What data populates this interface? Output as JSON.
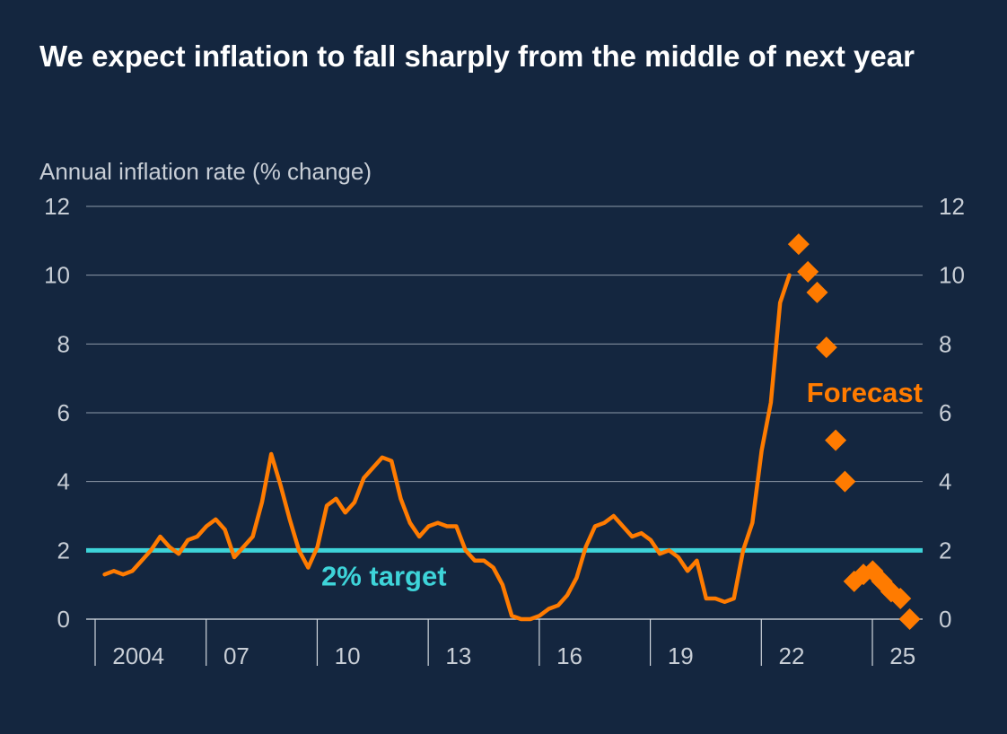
{
  "chart_data": {
    "type": "line",
    "title": "We expect inflation to fall sharply from the middle of next year",
    "ylabel": "Annual inflation rate (% change)",
    "ylim": [
      0,
      12
    ],
    "yticks": [
      "0",
      "2",
      "4",
      "6",
      "8",
      "10",
      "12"
    ],
    "xlim": [
      2003.0,
      2025.6
    ],
    "x_tick_labels": [
      {
        "x": 2004,
        "label": "2004"
      },
      {
        "x": 2007,
        "label": "07"
      },
      {
        "x": 2010,
        "label": "10"
      },
      {
        "x": 2013,
        "label": "13"
      },
      {
        "x": 2016,
        "label": "16"
      },
      {
        "x": 2019,
        "label": "19"
      },
      {
        "x": 2022,
        "label": "22"
      },
      {
        "x": 2025,
        "label": "25"
      }
    ],
    "x_gridlines": [
      2003,
      2006,
      2009,
      2012,
      2015,
      2018,
      2021,
      2024
    ],
    "grid": "horizontal",
    "colors": {
      "background": "#14263f",
      "actual": "#ff7b00",
      "forecast": "#ff7b00",
      "target": "#3ed4d9",
      "gridline": "#8d99a8",
      "axis_text": "#c8ced6",
      "title": "#ffffff"
    },
    "series": [
      {
        "style": "line",
        "points": [
          [
            2003.5,
            1.3
          ],
          [
            2003.75,
            1.4
          ],
          [
            2004.0,
            1.3
          ],
          [
            2004.25,
            1.4
          ],
          [
            2004.5,
            1.7
          ],
          [
            2004.75,
            2.0
          ],
          [
            2005.0,
            2.4
          ],
          [
            2005.25,
            2.1
          ],
          [
            2005.5,
            1.9
          ],
          [
            2005.75,
            2.3
          ],
          [
            2006.0,
            2.4
          ],
          [
            2006.25,
            2.7
          ],
          [
            2006.5,
            2.9
          ],
          [
            2006.75,
            2.6
          ],
          [
            2007.0,
            1.8
          ],
          [
            2007.25,
            2.1
          ],
          [
            2007.5,
            2.4
          ],
          [
            2007.75,
            3.4
          ],
          [
            2008.0,
            4.8
          ],
          [
            2008.25,
            3.9
          ],
          [
            2008.5,
            2.9
          ],
          [
            2008.75,
            2.0
          ],
          [
            2009.0,
            1.5
          ],
          [
            2009.25,
            2.1
          ],
          [
            2009.5,
            3.3
          ],
          [
            2009.75,
            3.5
          ],
          [
            2010.0,
            3.1
          ],
          [
            2010.25,
            3.4
          ],
          [
            2010.5,
            4.1
          ],
          [
            2010.75,
            4.4
          ],
          [
            2011.0,
            4.7
          ],
          [
            2011.25,
            4.6
          ],
          [
            2011.5,
            3.5
          ],
          [
            2011.75,
            2.8
          ],
          [
            2012.0,
            2.4
          ],
          [
            2012.25,
            2.7
          ],
          [
            2012.5,
            2.8
          ],
          [
            2012.75,
            2.7
          ],
          [
            2013.0,
            2.7
          ],
          [
            2013.25,
            2.0
          ],
          [
            2013.5,
            1.7
          ],
          [
            2013.75,
            1.7
          ],
          [
            2014.0,
            1.5
          ],
          [
            2014.25,
            1.0
          ],
          [
            2014.5,
            0.1
          ],
          [
            2014.75,
            0.0
          ],
          [
            2015.0,
            0.0
          ],
          [
            2015.25,
            0.1
          ],
          [
            2015.5,
            0.3
          ],
          [
            2015.75,
            0.4
          ],
          [
            2016.0,
            0.7
          ],
          [
            2016.25,
            1.2
          ],
          [
            2016.5,
            2.1
          ],
          [
            2016.75,
            2.7
          ],
          [
            2017.0,
            2.8
          ],
          [
            2017.25,
            3.0
          ],
          [
            2017.5,
            2.7
          ],
          [
            2017.75,
            2.4
          ],
          [
            2018.0,
            2.5
          ],
          [
            2018.25,
            2.3
          ],
          [
            2018.5,
            1.9
          ],
          [
            2018.75,
            2.0
          ],
          [
            2019.0,
            1.8
          ],
          [
            2019.25,
            1.4
          ],
          [
            2019.5,
            1.7
          ],
          [
            2019.75,
            0.6
          ],
          [
            2020.0,
            0.6
          ],
          [
            2020.25,
            0.5
          ],
          [
            2020.5,
            0.6
          ],
          [
            2020.75,
            2.0
          ],
          [
            2021.0,
            2.8
          ],
          [
            2021.25,
            4.9
          ],
          [
            2021.5,
            6.3
          ],
          [
            2021.75,
            9.2
          ],
          [
            2022.0,
            10.0
          ]
        ]
      },
      {
        "style": "markers",
        "label": "Forecast",
        "points": [
          [
            2022.25,
            10.9
          ],
          [
            2022.5,
            10.1
          ],
          [
            2022.75,
            9.5
          ],
          [
            2023.0,
            7.9
          ],
          [
            2023.25,
            5.2
          ],
          [
            2023.5,
            4.0
          ],
          [
            2023.75,
            1.1
          ],
          [
            2024.0,
            1.3
          ],
          [
            2024.25,
            1.4
          ],
          [
            2024.5,
            1.1
          ],
          [
            2024.75,
            0.8
          ],
          [
            2025.0,
            0.6
          ],
          [
            2025.25,
            0.0
          ]
        ]
      }
    ],
    "reference_lines": [
      {
        "y": 2,
        "label": "2% target"
      }
    ]
  }
}
